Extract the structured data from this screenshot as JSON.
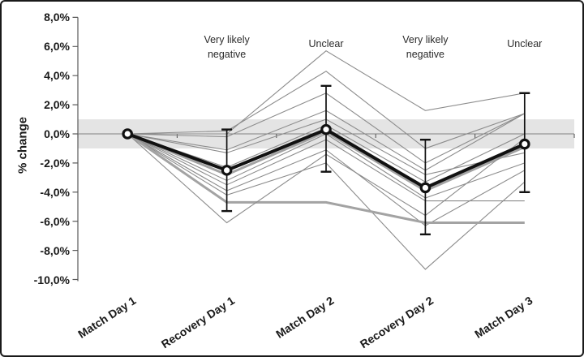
{
  "figure": {
    "background": "#ffffff",
    "border_color": "#1a1a1a"
  },
  "chart_data": {
    "type": "line",
    "title": "",
    "ylabel": "% change",
    "categories": [
      "Match Day 1",
      "Recovery Day 1",
      "Match Day 2",
      "Recovery Day 2",
      "Match Day 3"
    ],
    "y_axis": {
      "min": -10,
      "max": 8,
      "step": 2,
      "tick_labels": [
        "8,0%",
        "6,0%",
        "4,0%",
        "2,0%",
        "0,0%",
        "-2,0%",
        "-4,0%",
        "-6,0%",
        "-8,0%",
        "-10,0%"
      ],
      "grid": false
    },
    "trivial_band": {
      "upper": 1.0,
      "lower": -1.0,
      "color": "#e4e4e4"
    },
    "zero_line_color": "#808080",
    "axis_color": "#595959",
    "annotations": [
      {
        "category_index": 1,
        "lines": [
          "Very likely",
          "negative"
        ]
      },
      {
        "category_index": 2,
        "lines": [
          "Unclear"
        ]
      },
      {
        "category_index": 3,
        "lines": [
          "Very likely",
          "negative"
        ]
      },
      {
        "category_index": 4,
        "lines": [
          "Unclear"
        ]
      }
    ],
    "mean_series": {
      "name": "mean",
      "color": "#111111",
      "marker": "open-circle",
      "values": [
        0.0,
        -2.5,
        0.3,
        -3.7,
        -0.7
      ],
      "error_upper": [
        null,
        0.3,
        3.3,
        -0.4,
        2.8
      ],
      "error_lower": [
        null,
        -5.3,
        -2.6,
        -6.9,
        -4.0
      ]
    },
    "individual_color": "#8c8c8c",
    "individual_emphasis_color": "#a3a3a3",
    "individual_series": [
      {
        "values": [
          0,
          0.0,
          5.7,
          1.6,
          2.8
        ],
        "emphasis": false
      },
      {
        "values": [
          0,
          0.2,
          4.3,
          -1.0,
          1.4
        ],
        "emphasis": false
      },
      {
        "values": [
          0,
          -0.2,
          2.8,
          -2.0,
          1.4
        ],
        "emphasis": false
      },
      {
        "values": [
          0,
          -1.1,
          1.6,
          -2.5,
          1.4
        ],
        "emphasis": false
      },
      {
        "values": [
          0,
          -1.3,
          1.0,
          -2.8,
          -1.3
        ],
        "emphasis": false
      },
      {
        "values": [
          0,
          -2.3,
          0.6,
          -3.3,
          0.0
        ],
        "emphasis": false
      },
      {
        "values": [
          0,
          -2.8,
          0.15,
          -3.9,
          -0.9
        ],
        "emphasis": true
      },
      {
        "values": [
          0,
          -3.2,
          0.0,
          -4.4,
          -2.0
        ],
        "emphasis": false
      },
      {
        "values": [
          0,
          -3.5,
          -0.4,
          -4.6,
          -4.6
        ],
        "emphasis": false
      },
      {
        "values": [
          0,
          -3.9,
          -1.1,
          -6.3,
          -2.5
        ],
        "emphasis": false
      },
      {
        "values": [
          0,
          -4.2,
          -2.0,
          -9.3,
          -3.3
        ],
        "emphasis": false
      },
      {
        "values": [
          0,
          -4.7,
          -4.7,
          -6.1,
          -6.1
        ],
        "emphasis": true
      },
      {
        "values": [
          0,
          -6.1,
          -1.4,
          -5.6,
          -0.3
        ],
        "emphasis": false
      }
    ]
  }
}
